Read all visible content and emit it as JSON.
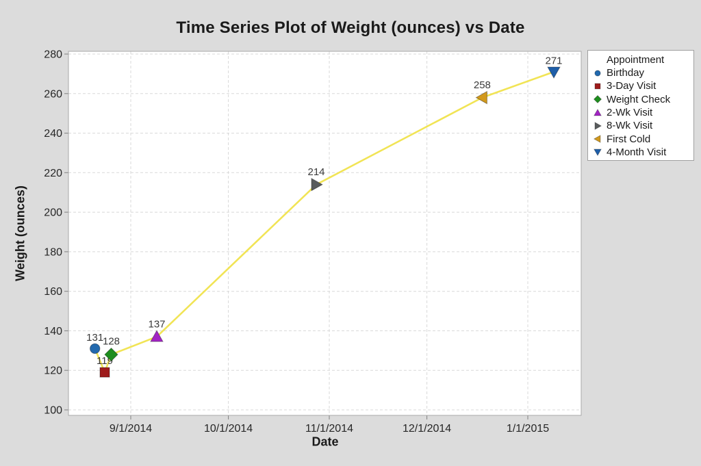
{
  "chart_data": {
    "type": "line",
    "title": "Time Series Plot of Weight (ounces) vs Date",
    "xlabel": "Date",
    "ylabel": "Weight (ounces)",
    "ylim": [
      100,
      280
    ],
    "y_ticks": [
      100,
      120,
      140,
      160,
      180,
      200,
      220,
      240,
      260,
      280
    ],
    "x_ticks": [
      "9/1/2014",
      "10/1/2014",
      "11/1/2014",
      "12/1/2014",
      "1/1/2015"
    ],
    "x_range_approx": [
      "8/13/2014",
      "1/18/2015"
    ],
    "grid": "dashed horizontal and vertical gridlines at ticks",
    "legend_position": "right-outside",
    "legend_title": "Appointment",
    "line_color": "#F1E455",
    "background_color": "#DCDCDC",
    "plot_background": "#FFFFFF",
    "points": [
      {
        "appointment": "Birthday",
        "date_approx": "8/21/2014",
        "weight": 131,
        "shape": "circle",
        "color": "#2269AE"
      },
      {
        "appointment": "3-Day Visit",
        "date_approx": "8/24/2014",
        "weight": 119,
        "shape": "square",
        "color": "#9E1B1B"
      },
      {
        "appointment": "Weight Check",
        "date_approx": "8/26/2014",
        "weight": 128,
        "shape": "diamond",
        "color": "#1E8E1E"
      },
      {
        "appointment": "2-Wk Visit",
        "date_approx": "9/9/2014",
        "weight": 137,
        "shape": "triangle-up",
        "color": "#A224C4"
      },
      {
        "appointment": "8-Wk Visit",
        "date_approx": "10/28/2014",
        "weight": 214,
        "shape": "triangle-right",
        "color": "#595C5D"
      },
      {
        "appointment": "First Cold",
        "date_approx": "12/18/2014",
        "weight": 258,
        "shape": "triangle-left",
        "color": "#D2991C"
      },
      {
        "appointment": "4-Month Visit",
        "date_approx": "1/9/2015",
        "weight": 271,
        "shape": "triangle-down",
        "color": "#1F5FA9"
      }
    ]
  }
}
